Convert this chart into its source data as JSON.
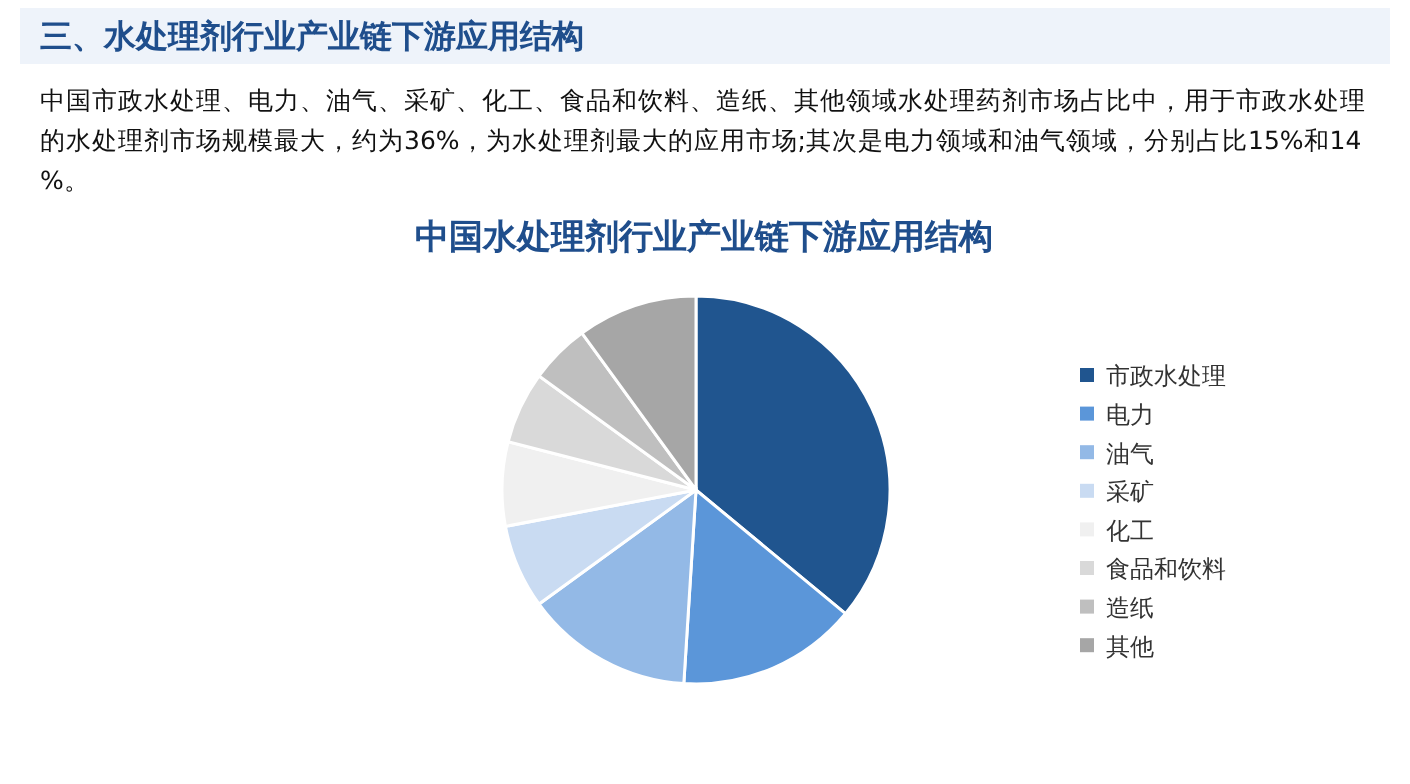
{
  "chart_data": {
    "type": "pie",
    "title": "三、水处理剂行业产业链下游应用结构",
    "subtitle": "中国水处理剂行业产业链下游应用结构",
    "annotations": [
      "中国市政水处理、电力、油气、采矿、化工、食品和饮料、造纸、其他领域水处理药剂市场占比中，用于市政水处理的水处理剂市场规模最大，约为36%，为水处理剂最大的应用市场;其次是电力领域和油气领域，分别占比15%和14%。"
    ],
    "categories": [
      "市政水处理",
      "电力",
      "油气",
      "采矿",
      "化工",
      "食品和饮料",
      "造纸",
      "其他"
    ],
    "values": [
      36,
      15,
      14,
      7,
      7,
      6,
      5,
      10
    ],
    "colors": [
      "#20558f",
      "#5b96d9",
      "#93b9e6",
      "#c9dbf2",
      "#f0f0f0",
      "#d9d9d9",
      "#bfbfbf",
      "#a6a6a6"
    ],
    "legend": "right"
  }
}
